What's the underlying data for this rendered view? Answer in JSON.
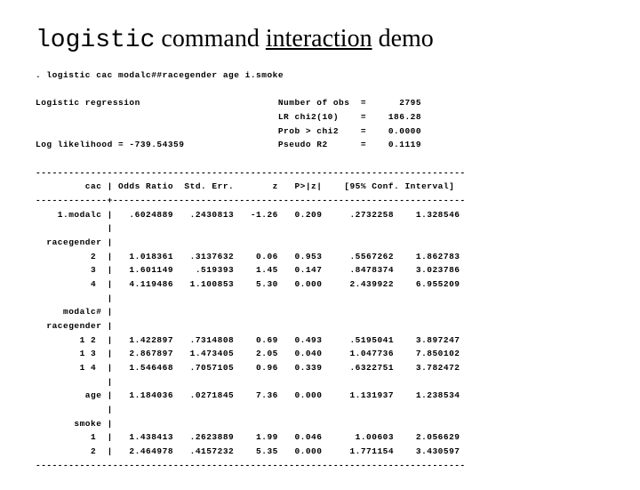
{
  "title": {
    "part1": "logistic",
    "part2": " command ",
    "part3": "interaction",
    "part4": " demo"
  },
  "command": ". logistic cac modalc##racegender age i.smoke",
  "header": {
    "label": "Logistic regression",
    "stats": [
      {
        "name": "Number of obs",
        "eq": "=",
        "val": "2795"
      },
      {
        "name": "LR chi2(10)",
        "eq": "=",
        "val": "186.28"
      },
      {
        "name": "Prob > chi2",
        "eq": "=",
        "val": "0.0000"
      },
      {
        "name": "Pseudo R2",
        "eq": "=",
        "val": "0.1119"
      }
    ],
    "loglike": "Log likelihood = -739.54359"
  },
  "divider": "------------------------------------------------------------------------------",
  "divider2": "-------------+----------------------------------------------------------------",
  "columns": {
    "c0": "cac",
    "c1": "Odds Ratio",
    "c2": "Std. Err.",
    "c3": "z",
    "c4": "P>|z|",
    "c5": "[95% Conf. Interval]"
  },
  "rows": [
    {
      "label": "1.modalc",
      "or": ".6024889",
      "se": ".2430813",
      "z": "-1.26",
      "p": "0.209",
      "lo": ".2732258",
      "hi": "1.328546"
    },
    {
      "label": "",
      "blank": true
    },
    {
      "label": "racegender",
      "header": true
    },
    {
      "label": "2 ",
      "or": "1.018361",
      "se": ".3137632",
      "z": "0.06",
      "p": "0.953",
      "lo": ".5567262",
      "hi": "1.862783"
    },
    {
      "label": "3 ",
      "or": "1.601149",
      "se": ".519393",
      "z": "1.45",
      "p": "0.147",
      "lo": ".8478374",
      "hi": "3.023786"
    },
    {
      "label": "4 ",
      "or": "4.119486",
      "se": "1.100853",
      "z": "5.30",
      "p": "0.000",
      "lo": "2.439922",
      "hi": "6.955209"
    },
    {
      "label": "",
      "blank": true
    },
    {
      "label": "modalc#",
      "header": true
    },
    {
      "label": "racegender",
      "header": true
    },
    {
      "label": "1 2 ",
      "or": "1.422897",
      "se": ".7314808",
      "z": "0.69",
      "p": "0.493",
      "lo": ".5195041",
      "hi": "3.897247"
    },
    {
      "label": "1 3 ",
      "or": "2.867897",
      "se": "1.473405",
      "z": "2.05",
      "p": "0.040",
      "lo": "1.047736",
      "hi": "7.850102"
    },
    {
      "label": "1 4 ",
      "or": "1.546468",
      "se": ".7057105",
      "z": "0.96",
      "p": "0.339",
      "lo": ".6322751",
      "hi": "3.782472"
    },
    {
      "label": "",
      "blank": true
    },
    {
      "label": "age",
      "or": "1.184036",
      "se": ".0271845",
      "z": "7.36",
      "p": "0.000",
      "lo": "1.131937",
      "hi": "1.238534"
    },
    {
      "label": "",
      "blank": true
    },
    {
      "label": "smoke",
      "header": true
    },
    {
      "label": "1 ",
      "or": "1.438413",
      "se": ".2623889",
      "z": "1.99",
      "p": "0.046",
      "lo": "1.00603",
      "hi": "2.056629"
    },
    {
      "label": "2 ",
      "or": "2.464978",
      "se": ".4157232",
      "z": "5.35",
      "p": "0.000",
      "lo": "1.771154",
      "hi": "3.430597"
    }
  ]
}
